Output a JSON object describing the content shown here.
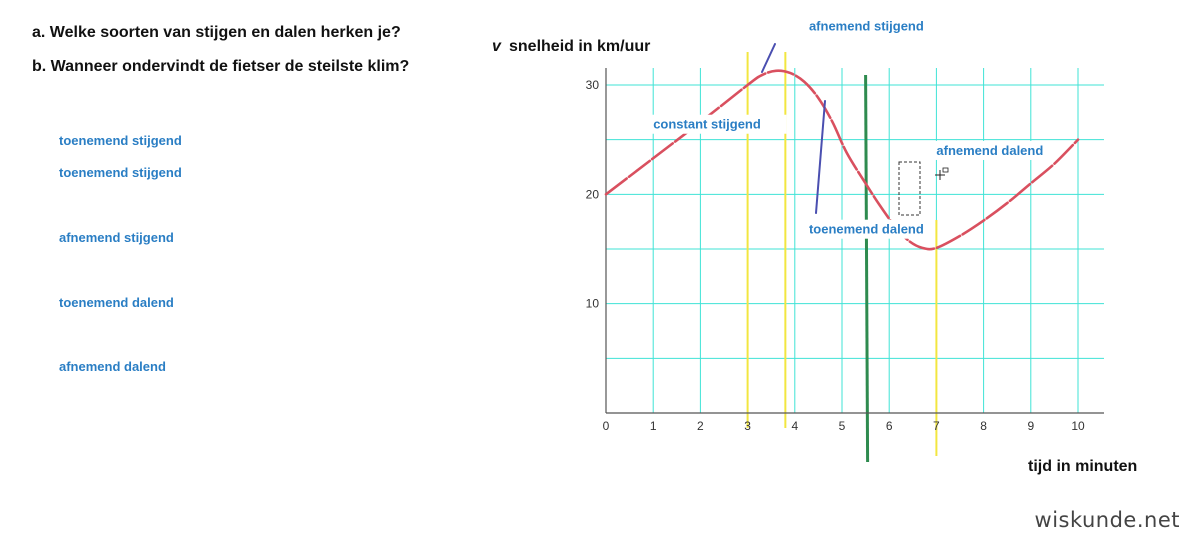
{
  "questions": {
    "a": "a. Welke soorten van stijgen en dalen herken je?",
    "b": "b. Wanneer ondervindt de fietser de steilste klim?"
  },
  "term_list": [
    "toenemend stijgend",
    "toenemend stijgend",
    "afnemend stijgend",
    "toenemend dalend",
    "afnemend dalend"
  ],
  "watermark": "wiskunde.net",
  "colors": {
    "curve": "#d9505f",
    "grid": "#3fe3d6",
    "yellow_line": "#f2e640",
    "green_line": "#2e8b4f",
    "pen": "#4a4fb0",
    "annotation": "#2a7ec4"
  },
  "chart_data": {
    "type": "line",
    "y_axis_var": "v",
    "ylabel": "snelheid in km/uur",
    "xlabel": "tijd in minuten",
    "xlim": [
      0,
      10
    ],
    "ylim": [
      0,
      30
    ],
    "x_ticks": [
      "0",
      "1",
      "2",
      "3",
      "4",
      "5",
      "6",
      "7",
      "8",
      "9",
      "10"
    ],
    "y_ticks": [
      "10",
      "20",
      "30"
    ],
    "grid": true,
    "series": [
      {
        "x": [
          0,
          1,
          2,
          3,
          3.3,
          3.6,
          3.9,
          4.2,
          4.5,
          4.8,
          5.1,
          5.5,
          5.8,
          6.1,
          6.4,
          6.7,
          7,
          7.5,
          8,
          8.5,
          9,
          9.5,
          10
        ],
        "y": [
          20,
          23.3,
          26.6,
          30,
          30.9,
          31.3,
          31.1,
          30.3,
          28.8,
          26.6,
          23.8,
          21,
          19,
          17.2,
          15.8,
          15.1,
          15.1,
          16.2,
          17.6,
          19.2,
          21,
          22.8,
          25
        ]
      }
    ],
    "vertical_lines": [
      {
        "x": 3,
        "color": "yellow"
      },
      {
        "x": 3.8,
        "color": "yellow"
      },
      {
        "x": 5.5,
        "color": "green"
      },
      {
        "x": 7,
        "color": "yellow"
      }
    ],
    "annotations": [
      {
        "text": "afnemend stijgend",
        "x": 4.3,
        "y": 35
      },
      {
        "text": "constant stijgend",
        "x": 1.0,
        "y": 26
      },
      {
        "text": "afnemend dalend",
        "x": 7.0,
        "y": 23.6
      },
      {
        "text": "toenemend dalend",
        "x": 4.3,
        "y": 16.4
      }
    ]
  }
}
